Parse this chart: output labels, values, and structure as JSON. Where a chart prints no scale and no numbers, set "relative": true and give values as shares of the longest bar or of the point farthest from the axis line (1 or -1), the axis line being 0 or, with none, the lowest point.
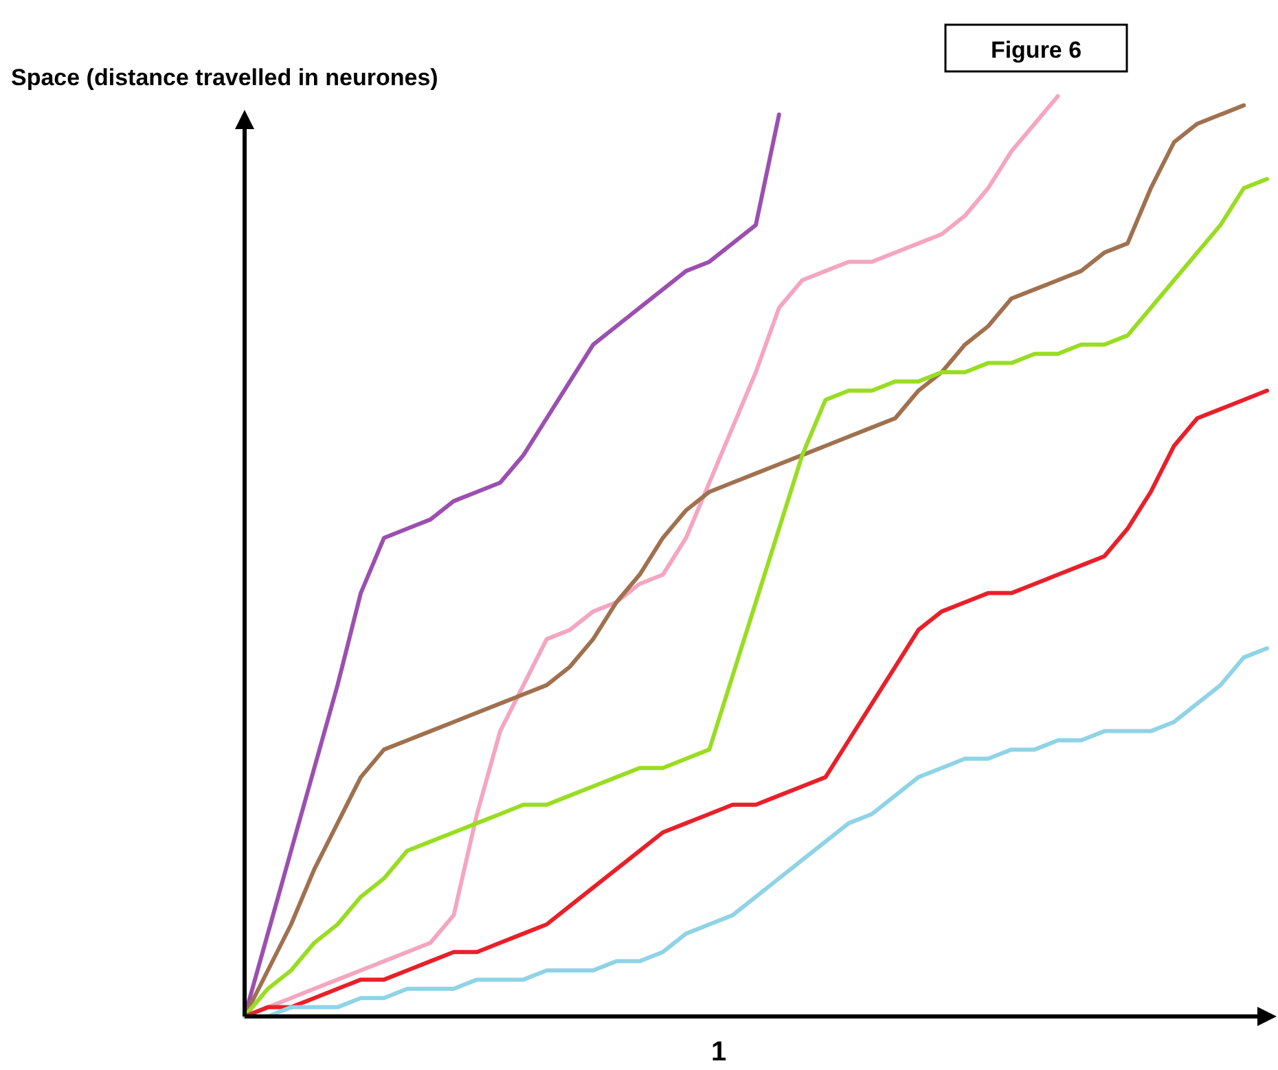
{
  "chart_data": {
    "type": "line",
    "title": "Figure 6",
    "ylabel": "Space (distance travelled in neurones)",
    "relative": true,
    "annotations": [
      "1"
    ],
    "marker": "none",
    "line_style": "solid",
    "categories": [
      null,
      null,
      null,
      null,
      null,
      null,
      null,
      null,
      null,
      null,
      null,
      null,
      null,
      null,
      null,
      null,
      null,
      null,
      null,
      null,
      null,
      null,
      null,
      null,
      null,
      null,
      null,
      null,
      null,
      null,
      null,
      null,
      null,
      null,
      null,
      null,
      null,
      null,
      null,
      null,
      null,
      null,
      null,
      null,
      null
    ],
    "series": [
      {
        "color": "#9b4fb0",
        "values": [
          0,
          0.09,
          0.18,
          0.27,
          0.36,
          0.46,
          0.52,
          0.53,
          0.54,
          0.56,
          0.57,
          0.58,
          0.61,
          0.65,
          0.69,
          0.73,
          0.75,
          0.77,
          0.79,
          0.81,
          0.82,
          0.84,
          0.86,
          0.98,
          null,
          null,
          null,
          null,
          null,
          null,
          null,
          null,
          null,
          null,
          null,
          null,
          null,
          null,
          null,
          null,
          null,
          null,
          null,
          null,
          null
        ]
      },
      {
        "color": "#f4a6c0",
        "values": [
          0,
          0.01,
          0.02,
          0.03,
          0.04,
          0.05,
          0.06,
          0.07,
          0.08,
          0.11,
          0.22,
          0.31,
          0.36,
          0.41,
          0.42,
          0.44,
          0.45,
          0.47,
          0.48,
          0.52,
          0.58,
          0.64,
          0.7,
          0.77,
          0.8,
          0.81,
          0.82,
          0.82,
          0.83,
          0.84,
          0.85,
          0.87,
          0.9,
          0.94,
          0.97,
          1,
          null,
          null,
          null,
          null,
          null,
          null,
          null,
          null,
          null
        ]
      },
      {
        "color": "#a0714f",
        "values": [
          0,
          0.05,
          0.1,
          0.16,
          0.21,
          0.26,
          0.29,
          0.3,
          0.31,
          0.32,
          0.33,
          0.34,
          0.35,
          0.36,
          0.38,
          0.41,
          0.45,
          0.48,
          0.52,
          0.55,
          0.57,
          0.58,
          0.59,
          0.6,
          0.61,
          0.62,
          0.63,
          0.64,
          0.65,
          0.68,
          0.7,
          0.73,
          0.75,
          0.78,
          0.79,
          0.8,
          0.81,
          0.83,
          0.84,
          0.9,
          0.95,
          0.97,
          0.98,
          0.99,
          null
        ]
      },
      {
        "color": "#99dd22",
        "values": [
          0,
          0.03,
          0.05,
          0.08,
          0.1,
          0.13,
          0.15,
          0.18,
          0.19,
          0.2,
          0.21,
          0.22,
          0.23,
          0.23,
          0.24,
          0.25,
          0.26,
          0.27,
          0.27,
          0.28,
          0.29,
          0.37,
          0.45,
          0.53,
          0.61,
          0.67,
          0.68,
          0.68,
          0.69,
          0.69,
          0.7,
          0.7,
          0.71,
          0.71,
          0.72,
          0.72,
          0.73,
          0.73,
          0.74,
          0.77,
          0.8,
          0.83,
          0.86,
          0.9,
          0.91
        ]
      },
      {
        "color": "#e8202a",
        "values": [
          0,
          0.01,
          0.01,
          0.02,
          0.03,
          0.04,
          0.04,
          0.05,
          0.06,
          0.07,
          0.07,
          0.08,
          0.09,
          0.1,
          0.12,
          0.14,
          0.16,
          0.18,
          0.2,
          0.21,
          0.22,
          0.23,
          0.23,
          0.24,
          0.25,
          0.26,
          0.3,
          0.34,
          0.38,
          0.42,
          0.44,
          0.45,
          0.46,
          0.46,
          0.47,
          0.48,
          0.49,
          0.5,
          0.53,
          0.57,
          0.62,
          0.65,
          0.66,
          0.67,
          0.68
        ]
      },
      {
        "color": "#8fd3e6",
        "values": [
          0,
          0,
          0.01,
          0.01,
          0.01,
          0.02,
          0.02,
          0.03,
          0.03,
          0.03,
          0.04,
          0.04,
          0.04,
          0.05,
          0.05,
          0.05,
          0.06,
          0.06,
          0.07,
          0.09,
          0.1,
          0.11,
          0.13,
          0.15,
          0.17,
          0.19,
          0.21,
          0.22,
          0.24,
          0.26,
          0.27,
          0.28,
          0.28,
          0.29,
          0.29,
          0.3,
          0.3,
          0.31,
          0.31,
          0.31,
          0.32,
          0.34,
          0.36,
          0.39,
          0.4
        ]
      }
    ]
  }
}
